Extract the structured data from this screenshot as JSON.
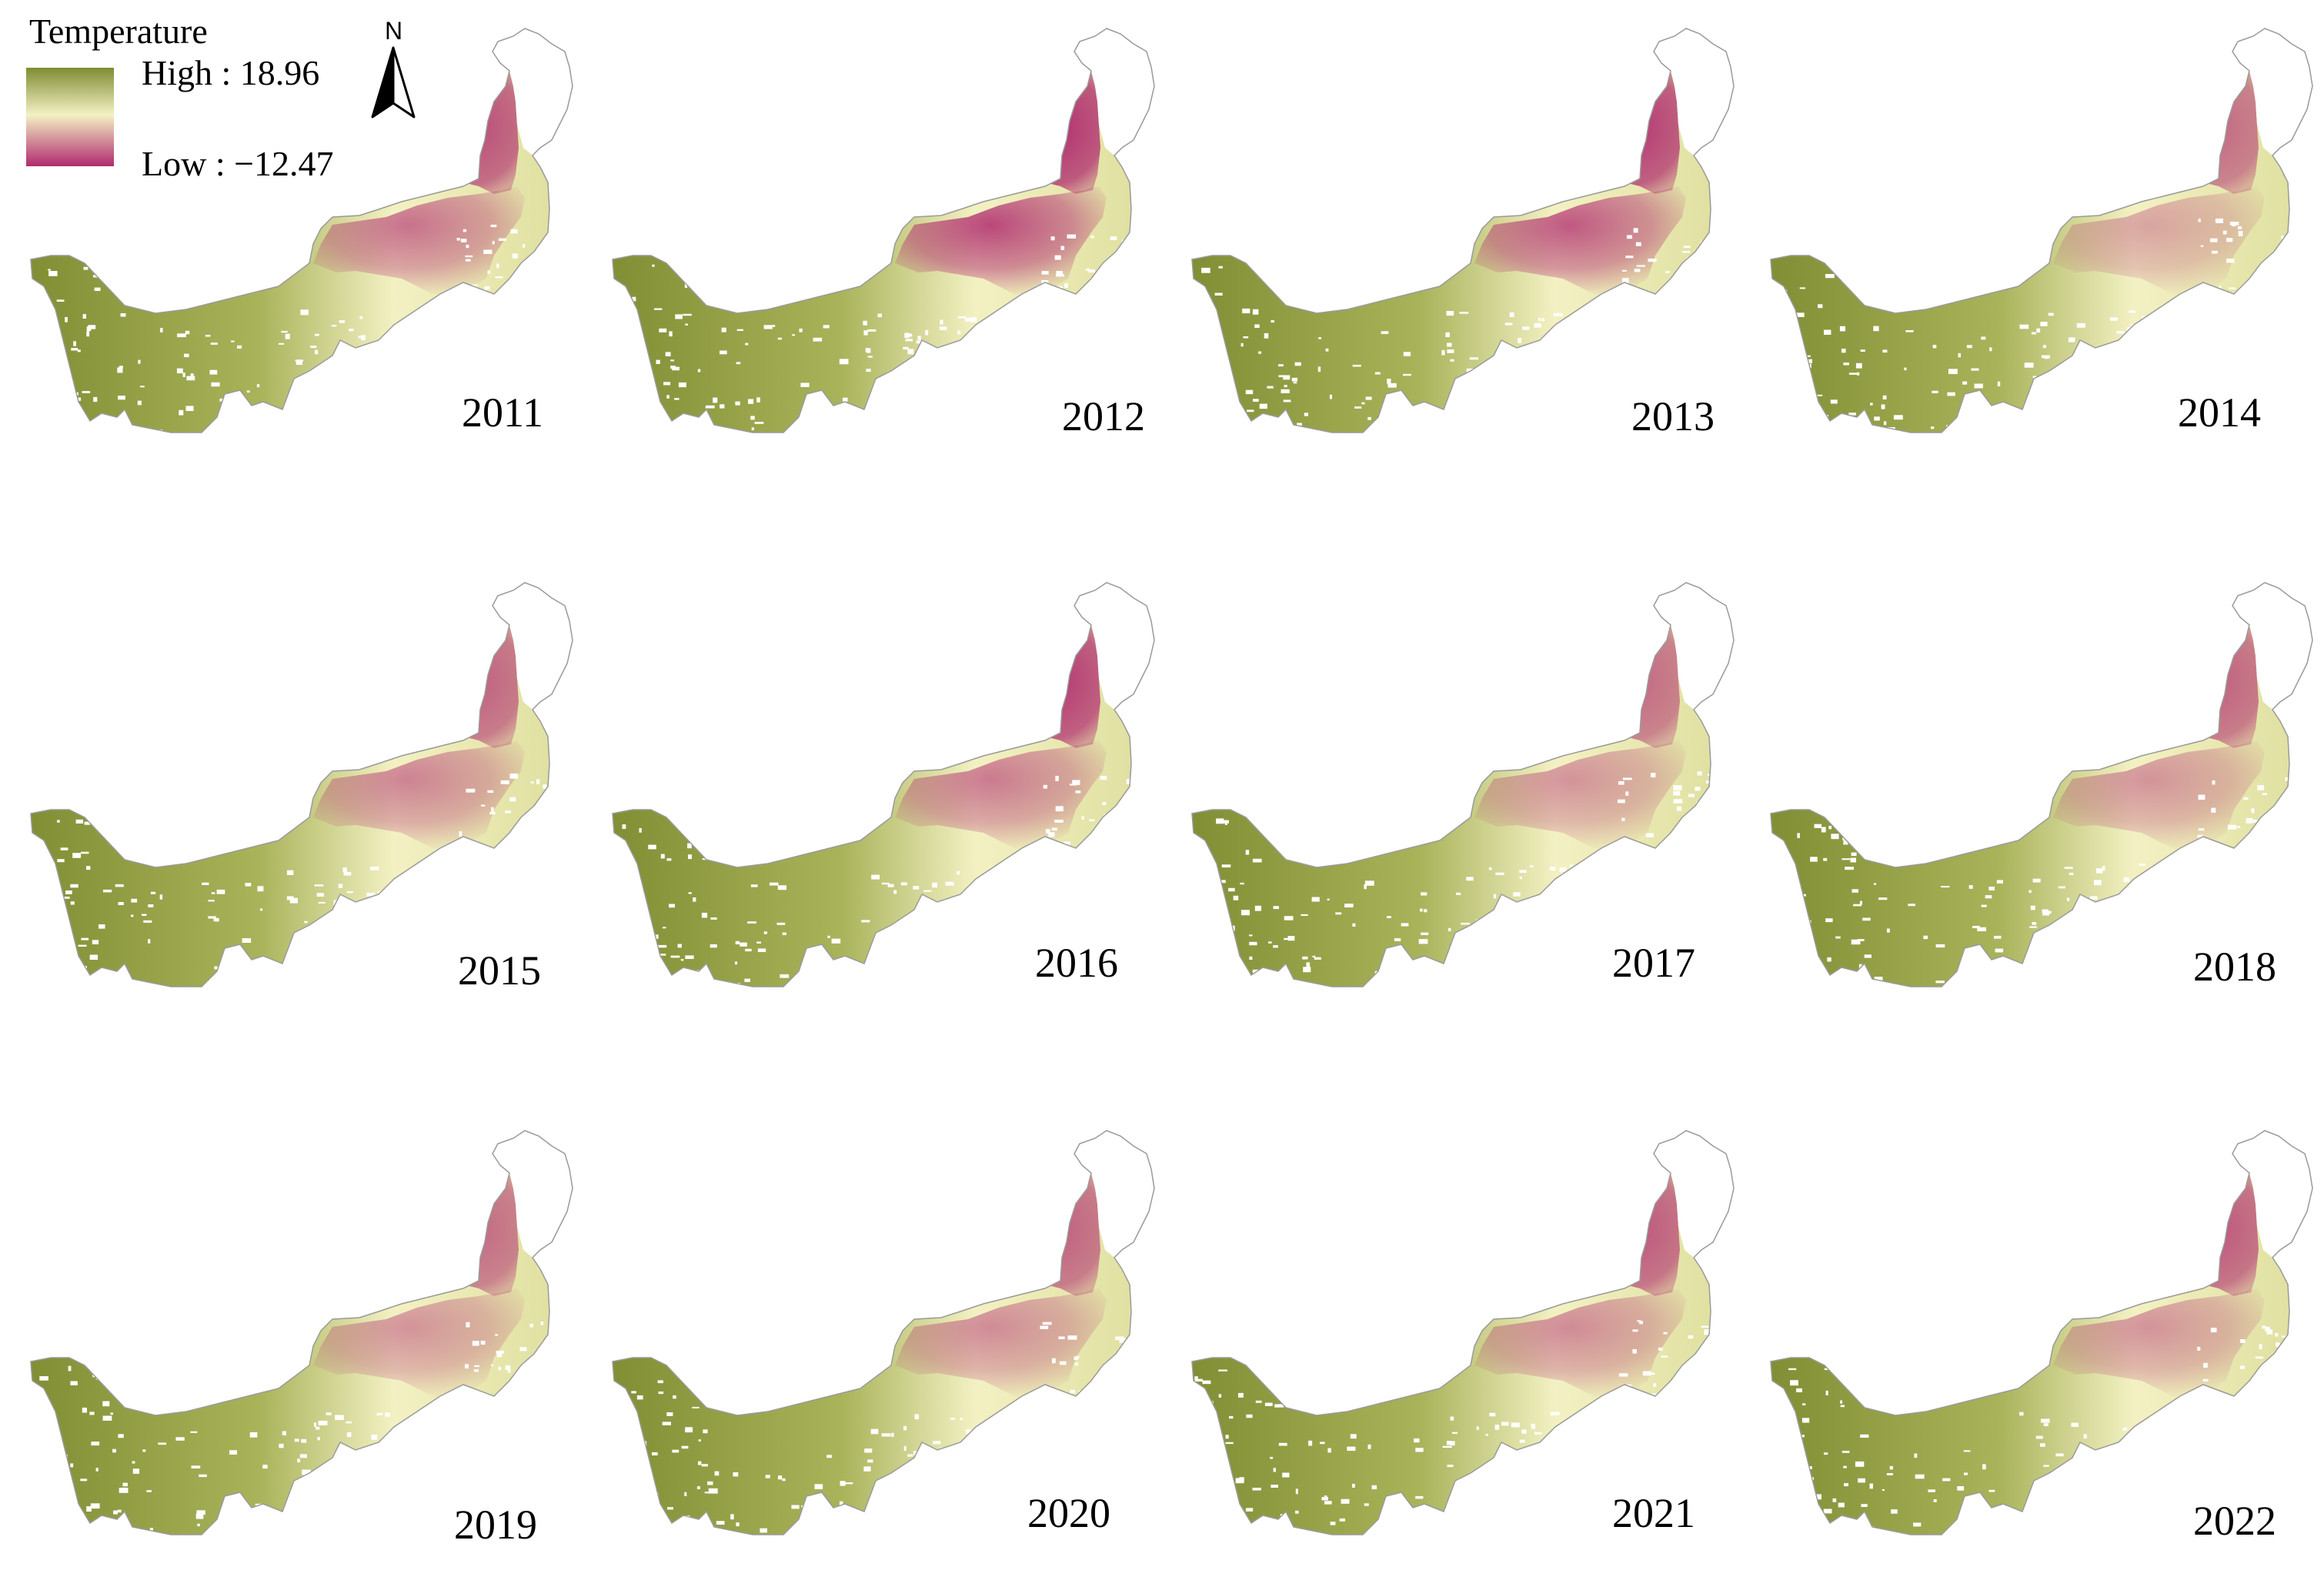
{
  "legend": {
    "title": "Temperature",
    "high_label": "High : 18.96",
    "low_label": "Low : −12.47",
    "high_value": 18.96,
    "low_value": -12.47,
    "colors": {
      "high": "#7f8c32",
      "mid": "#f3f1c3",
      "low": "#b02a6e"
    }
  },
  "north_arrow": {
    "label": "N",
    "icon": "north-arrow-icon"
  },
  "panels": [
    {
      "year": "2011",
      "north_cold": 0.85,
      "central_cold": 0.75
    },
    {
      "year": "2012",
      "north_cold": 1.0,
      "central_cold": 1.0
    },
    {
      "year": "2013",
      "north_cold": 0.95,
      "central_cold": 0.9
    },
    {
      "year": "2014",
      "north_cold": 0.7,
      "central_cold": 0.45
    },
    {
      "year": "2015",
      "north_cold": 0.75,
      "central_cold": 0.65
    },
    {
      "year": "2016",
      "north_cold": 0.95,
      "central_cold": 0.7
    },
    {
      "year": "2017",
      "north_cold": 0.7,
      "central_cold": 0.55
    },
    {
      "year": "2018",
      "north_cold": 0.75,
      "central_cold": 0.55
    },
    {
      "year": "2019",
      "north_cold": 0.7,
      "central_cold": 0.55
    },
    {
      "year": "2020",
      "north_cold": 0.75,
      "central_cold": 0.6
    },
    {
      "year": "2021",
      "north_cold": 0.8,
      "central_cold": 0.6
    },
    {
      "year": "2022",
      "north_cold": 0.8,
      "central_cold": 0.55
    }
  ]
}
